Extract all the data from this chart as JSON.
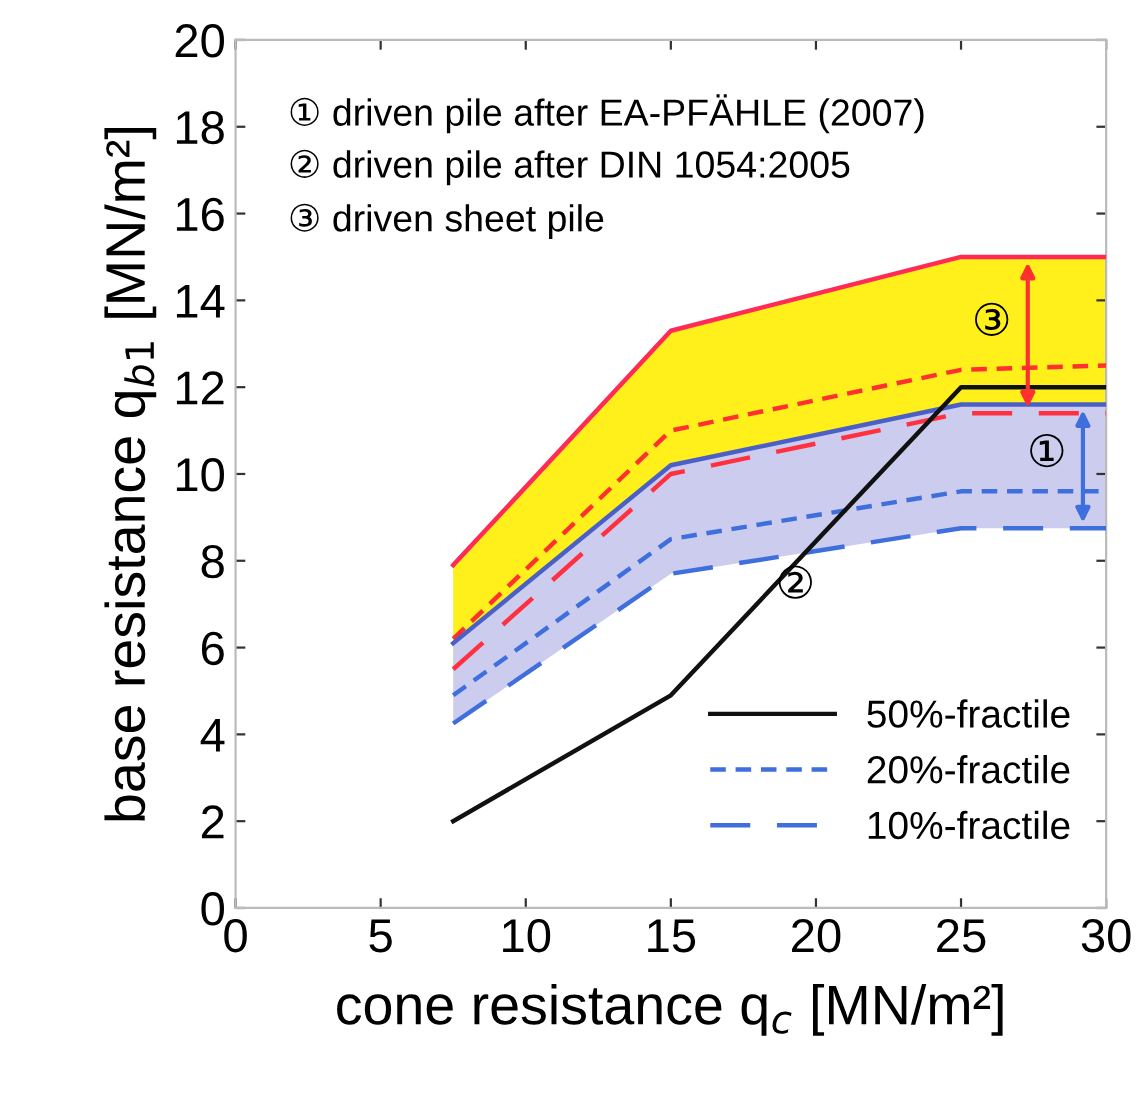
{
  "chart_data": {
    "type": "line",
    "xlabel": "cone resistance q$_{c}$ [MN/m²]",
    "ylabel": "base resistance q$_{b1}$ [MN/m²]",
    "x": [
      7.5,
      15,
      25,
      30
    ],
    "xlim": [
      0,
      30
    ],
    "xticks": [
      0,
      5,
      10,
      15,
      20,
      25,
      30
    ],
    "ylim": [
      0,
      20
    ],
    "yticks": [
      0,
      2,
      4,
      6,
      8,
      10,
      12,
      14,
      16,
      18,
      20
    ],
    "grid": false,
    "legend": "bottom right",
    "marker": "none",
    "series": [
      {
        "color": "#ff2a55",
        "values": [
          7.9,
          13.3,
          15.0,
          15.0
        ],
        "line_style": "solid"
      },
      {
        "color": "#ff3030",
        "values": [
          6.2,
          11.0,
          12.4,
          12.5
        ],
        "line_style": "dotted",
        "lower": [
          5.5,
          10.0,
          11.4,
          11.4
        ],
        "upper": [
          7.9,
          13.3,
          15.0,
          15.0
        ]
      },
      {
        "color": "#ff3040",
        "values": [
          5.5,
          10.0,
          11.4,
          11.4
        ],
        "line_style": "dashed"
      },
      {
        "color": "#4a60c8",
        "values": [
          6.1,
          10.2,
          11.6,
          11.6
        ],
        "line_style": "solid"
      },
      {
        "name": "20%-fractile",
        "color": "#3f6fdd",
        "values": [
          4.9,
          8.5,
          9.6,
          9.6
        ],
        "line_style": "dotted",
        "lower": [
          4.25,
          7.7,
          8.75,
          8.75
        ],
        "upper": [
          6.1,
          10.2,
          11.6,
          11.6
        ]
      },
      {
        "name": "10%-fractile",
        "color": "#3f6fdd",
        "values": [
          4.25,
          7.7,
          8.75,
          8.75
        ],
        "line_style": "dashed"
      },
      {
        "name": "50%-fractile",
        "color": "#111111",
        "values": [
          2.0,
          4.9,
          12.0,
          12.0
        ],
        "line_style": "solid"
      }
    ],
    "annotations": [
      "① driven pile after EA-PFÄHLE (2007)",
      "② driven pile after DIN 1054:2005",
      "③ driven sheet pile",
      {
        "text": "③",
        "x": 27.3,
        "y": 15.0
      },
      {
        "text": "①",
        "x": 29.2,
        "y": 11.6
      },
      "②"
    ]
  }
}
